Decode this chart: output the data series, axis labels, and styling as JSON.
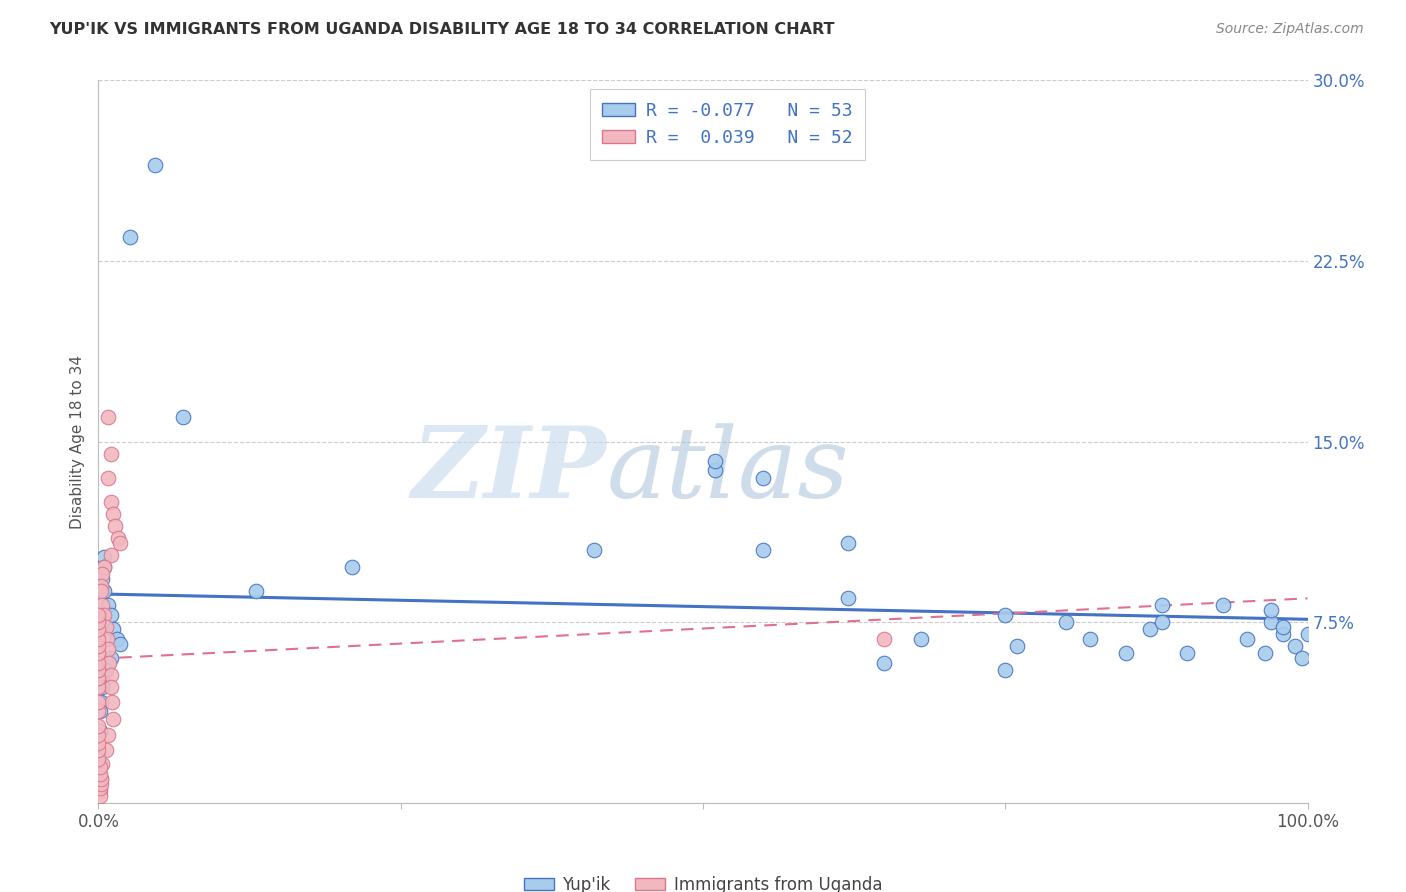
{
  "title": "YUP'IK VS IMMIGRANTS FROM UGANDA DISABILITY AGE 18 TO 34 CORRELATION CHART",
  "source": "Source: ZipAtlas.com",
  "ylabel": "Disability Age 18 to 34",
  "xlim": [
    0.0,
    1.0
  ],
  "ylim": [
    0.0,
    0.3
  ],
  "xticks": [
    0.0,
    0.25,
    0.5,
    0.75,
    1.0
  ],
  "xticklabels": [
    "0.0%",
    "",
    "",
    "",
    "100.0%"
  ],
  "yticks": [
    0.0,
    0.075,
    0.15,
    0.225,
    0.3
  ],
  "yticklabels": [
    "",
    "7.5%",
    "15.0%",
    "22.5%",
    "30.0%"
  ],
  "color_blue": "#a8ccec",
  "color_pink": "#f2b8c0",
  "color_blue_dark": "#4472c4",
  "color_pink_dark": "#d9768a",
  "color_blue_line": "#4472c4",
  "color_pink_line": "#e07090",
  "watermark_zip": "ZIP",
  "watermark_atlas": "atlas",
  "yup_x": [
    0.047,
    0.026,
    0.07,
    0.005,
    0.005,
    0.003,
    0.005,
    0.008,
    0.01,
    0.012,
    0.015,
    0.018,
    0.01,
    0.008,
    0.006,
    0.004,
    0.003,
    0.002,
    0.001,
    0.001,
    0.0,
    0.0,
    0.21,
    0.13,
    0.41,
    0.51,
    0.51,
    0.55,
    0.62,
    0.65,
    0.68,
    0.75,
    0.76,
    0.8,
    0.82,
    0.85,
    0.87,
    0.88,
    0.9,
    0.93,
    0.95,
    0.965,
    0.97,
    0.98,
    0.99,
    0.995,
    1.0,
    0.55,
    0.62,
    0.75,
    0.88,
    0.97,
    0.98
  ],
  "yup_y": [
    0.265,
    0.235,
    0.16,
    0.102,
    0.098,
    0.093,
    0.088,
    0.082,
    0.078,
    0.072,
    0.068,
    0.066,
    0.06,
    0.058,
    0.055,
    0.05,
    0.048,
    0.042,
    0.038,
    0.03,
    0.02,
    0.01,
    0.098,
    0.088,
    0.105,
    0.138,
    0.142,
    0.105,
    0.108,
    0.058,
    0.068,
    0.055,
    0.065,
    0.075,
    0.068,
    0.062,
    0.072,
    0.075,
    0.062,
    0.082,
    0.068,
    0.062,
    0.075,
    0.07,
    0.065,
    0.06,
    0.07,
    0.135,
    0.085,
    0.078,
    0.082,
    0.08,
    0.073
  ],
  "uga_x": [
    0.008,
    0.01,
    0.008,
    0.01,
    0.012,
    0.014,
    0.016,
    0.018,
    0.01,
    0.005,
    0.003,
    0.002,
    0.002,
    0.003,
    0.005,
    0.006,
    0.007,
    0.008,
    0.009,
    0.01,
    0.01,
    0.011,
    0.012,
    0.008,
    0.006,
    0.003,
    0.002,
    0.001,
    0.001,
    0.0015,
    0.002,
    0.002,
    0.001,
    0.001,
    0.0,
    0.0,
    0.0,
    0.0,
    0.0,
    0.0,
    0.0,
    0.0,
    0.0,
    0.0,
    0.0,
    0.0,
    0.0,
    0.0,
    0.0,
    0.0,
    0.0,
    0.65
  ],
  "uga_y": [
    0.16,
    0.145,
    0.135,
    0.125,
    0.12,
    0.115,
    0.11,
    0.108,
    0.103,
    0.098,
    0.095,
    0.09,
    0.088,
    0.082,
    0.078,
    0.073,
    0.068,
    0.064,
    0.058,
    0.053,
    0.048,
    0.042,
    0.035,
    0.028,
    0.022,
    0.016,
    0.01,
    0.005,
    0.003,
    0.006,
    0.008,
    0.01,
    0.012,
    0.015,
    0.018,
    0.022,
    0.025,
    0.028,
    0.032,
    0.038,
    0.042,
    0.048,
    0.052,
    0.055,
    0.058,
    0.062,
    0.065,
    0.068,
    0.072,
    0.075,
    0.078,
    0.068
  ]
}
